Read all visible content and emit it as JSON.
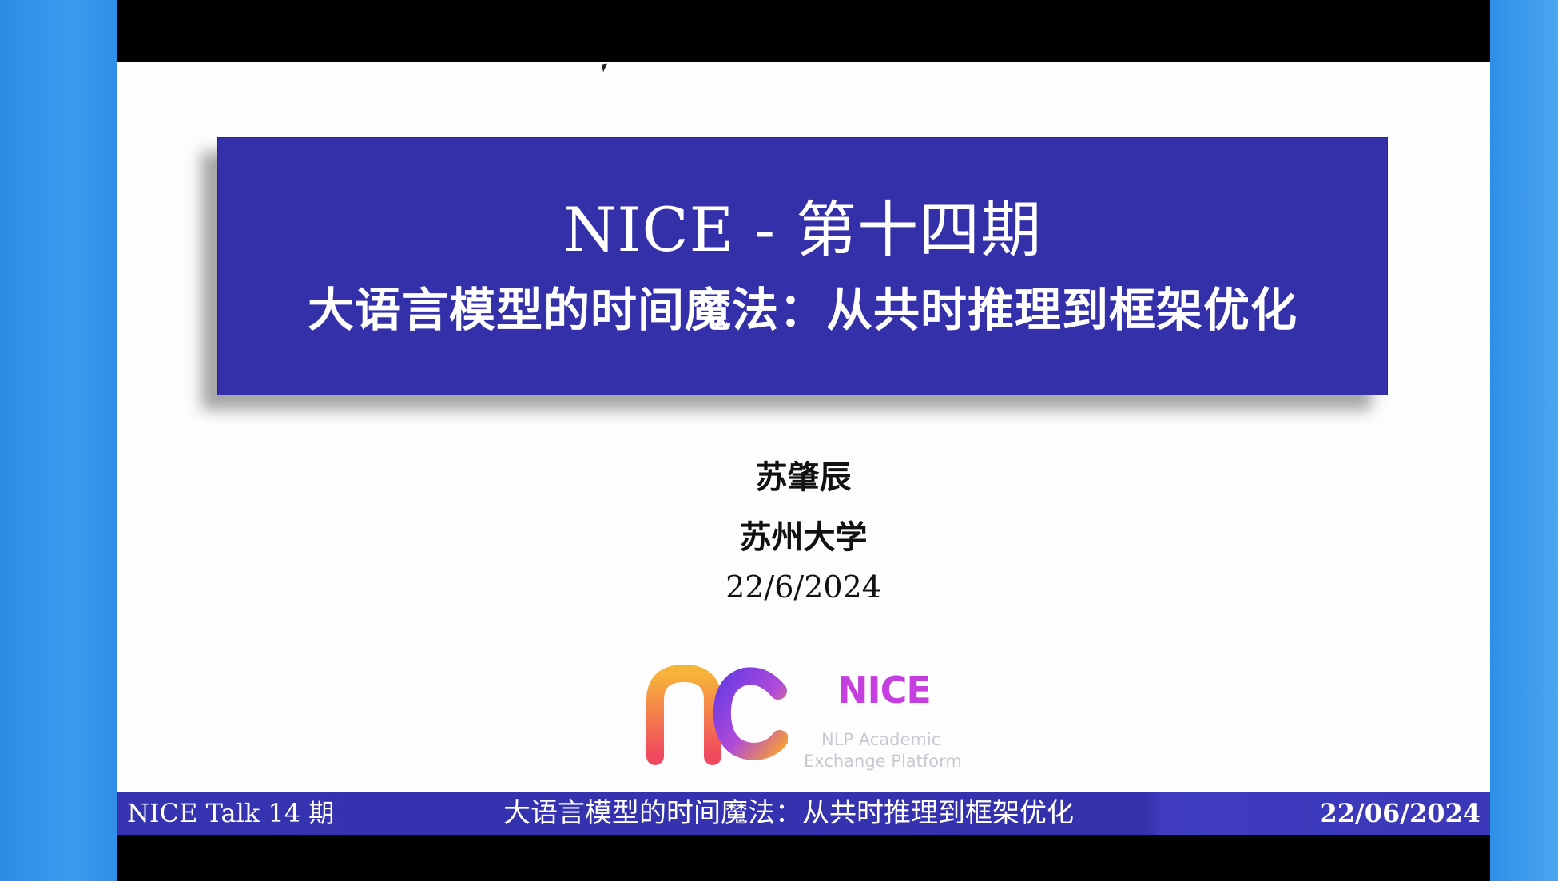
{
  "slide": {
    "title": "NICE - 第十四期",
    "subtitle": "大语言模型的时间魔法：从共时推理到框架优化",
    "author": "苏肇辰",
    "university": "苏州大学",
    "date": "22/6/2024"
  },
  "logo": {
    "wordmark": "NICE",
    "tagline_line1": "NLP Academic",
    "tagline_line2": "Exchange Platform",
    "colors": [
      "#f7a13a",
      "#f0485f",
      "#7b3fe4",
      "#c53ee0"
    ]
  },
  "footer": {
    "left": "NICE Talk 14 期",
    "center": "大语言模型的时间魔法：从共时推理到框架优化",
    "right": "22/06/2024"
  },
  "colors": {
    "title_box": "#3430aa",
    "background_blue": "#2f93ea",
    "footer": "#3533b0"
  }
}
